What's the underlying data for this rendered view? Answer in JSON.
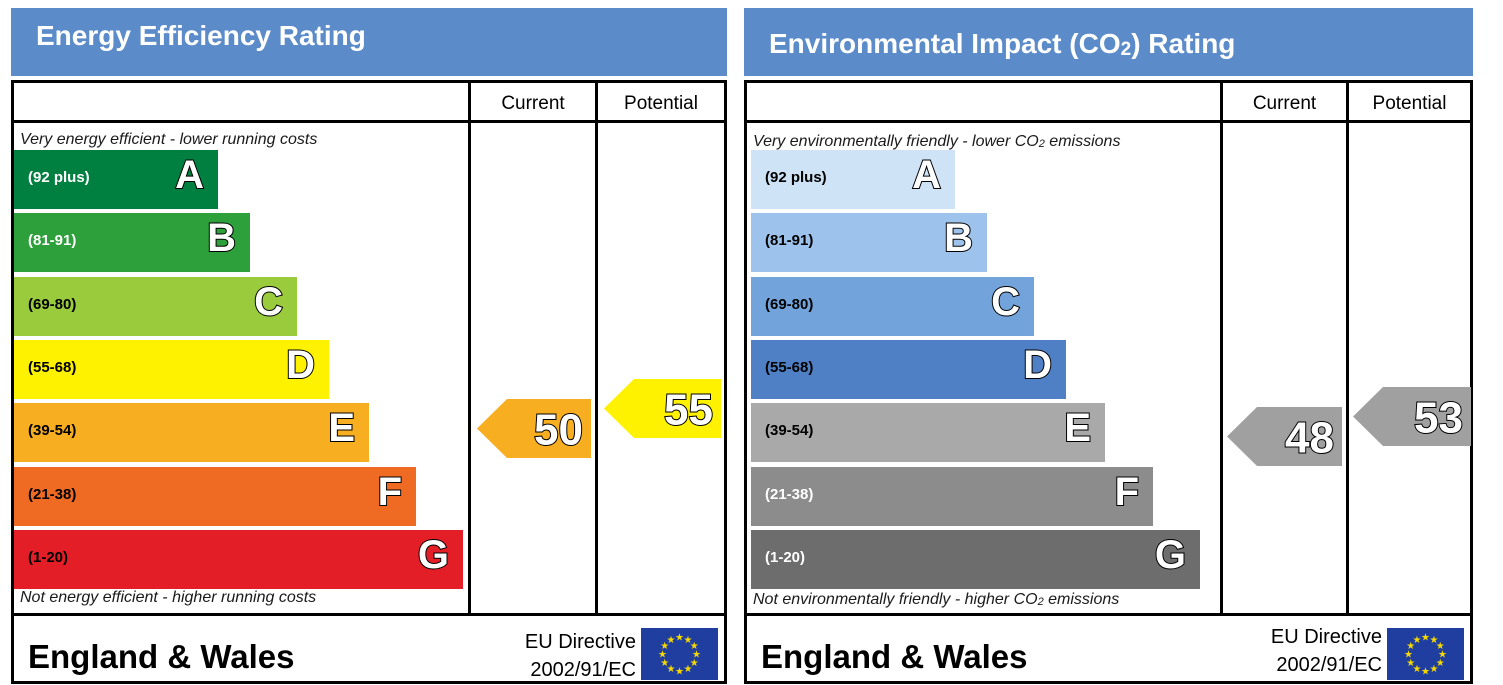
{
  "colors": {
    "title_bar": "#5b8bc9",
    "eu_flag_blue": "#1f3ea0",
    "eu_flag_star": "#f5d800"
  },
  "panels": [
    {
      "id": "energy",
      "title": "Energy Efficiency Rating",
      "column_current": "Current",
      "column_potential": "Potential",
      "note_top": "Very energy efficient - lower running costs",
      "note_bottom": "Not energy efficient - higher running costs",
      "footer_title": "England & Wales",
      "directive_line1": "EU Directive",
      "directive_line2": "2002/91/EC",
      "bands": [
        {
          "range": "(92 plus)",
          "letter": "A",
          "color": "#008040",
          "range_color": "#ffffff"
        },
        {
          "range": "(81-91)",
          "letter": "B",
          "color": "#2ea03b",
          "range_color": "#ffffff"
        },
        {
          "range": "(69-80)",
          "letter": "C",
          "color": "#9acb3c",
          "range_color": "#000000"
        },
        {
          "range": "(55-68)",
          "letter": "D",
          "color": "#fff200",
          "range_color": "#000000"
        },
        {
          "range": "(39-54)",
          "letter": "E",
          "color": "#f7ae20",
          "range_color": "#000000"
        },
        {
          "range": "(21-38)",
          "letter": "F",
          "color": "#ef6b24",
          "range_color": "#000000"
        },
        {
          "range": "(1-20)",
          "letter": "G",
          "color": "#e41e26",
          "range_color": "#000000"
        }
      ],
      "current": {
        "value": "50",
        "band": "E",
        "color": "#f7ae20"
      },
      "potential": {
        "value": "55",
        "band": "D",
        "color": "#fff200"
      }
    },
    {
      "id": "environment",
      "title_part1": "Environmental Impact (CO",
      "title_sub": "2",
      "title_part2": ") Rating",
      "column_current": "Current",
      "column_potential": "Potential",
      "note_top_part1": "Very environmentally friendly - lower CO",
      "note_top_sub": "2",
      "note_top_part2": " emissions",
      "note_bottom_part1": "Not environmentally friendly - higher CO",
      "note_bottom_sub": "2",
      "note_bottom_part2": " emissions",
      "footer_title": "England & Wales",
      "directive_line1": "EU Directive",
      "directive_line2": "2002/91/EC",
      "bands": [
        {
          "range": "(92 plus)",
          "letter": "A",
          "color": "#cfe3f7",
          "range_color": "#000000"
        },
        {
          "range": "(81-91)",
          "letter": "B",
          "color": "#9dc3ec",
          "range_color": "#000000"
        },
        {
          "range": "(69-80)",
          "letter": "C",
          "color": "#72a3da",
          "range_color": "#000000"
        },
        {
          "range": "(55-68)",
          "letter": "D",
          "color": "#4f80c5",
          "range_color": "#000000"
        },
        {
          "range": "(39-54)",
          "letter": "E",
          "color": "#a9a9a9",
          "range_color": "#000000"
        },
        {
          "range": "(21-38)",
          "letter": "F",
          "color": "#8c8c8c",
          "range_color": "#ffffff"
        },
        {
          "range": "(1-20)",
          "letter": "G",
          "color": "#6d6d6d",
          "range_color": "#ffffff"
        }
      ],
      "current": {
        "value": "48",
        "band": "E",
        "color": "#a0a0a0"
      },
      "potential": {
        "value": "53",
        "band": "E",
        "color": "#a0a0a0"
      }
    }
  ]
}
